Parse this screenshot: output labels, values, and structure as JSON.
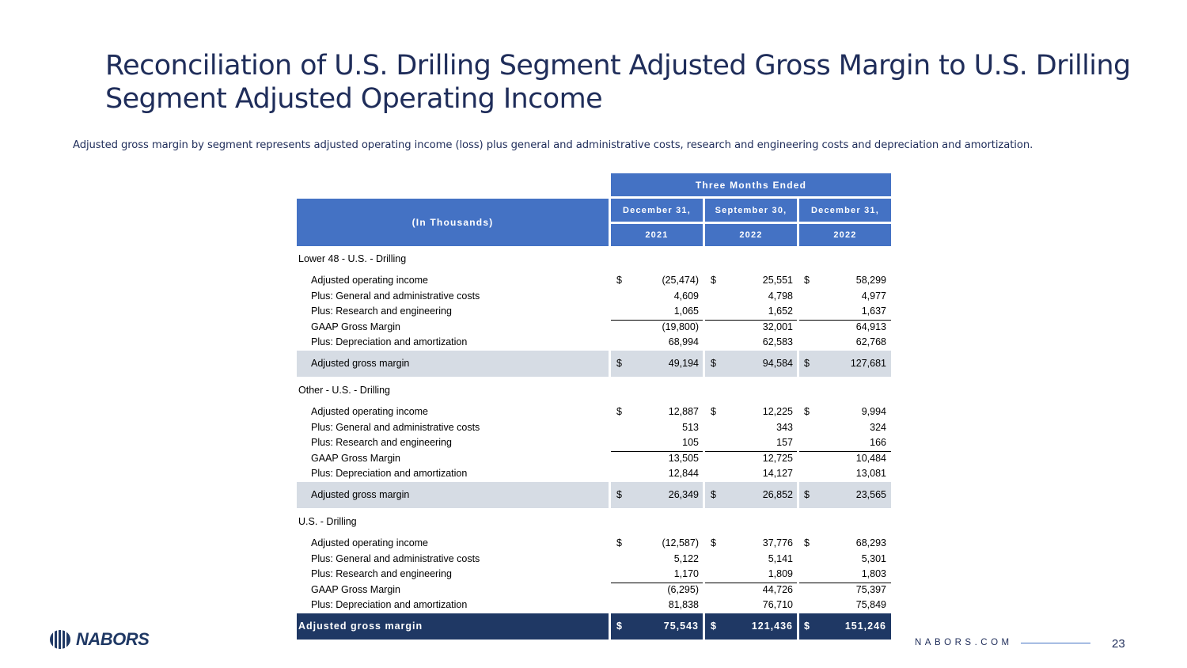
{
  "slide": {
    "title": "Reconciliation of U.S. Drilling Segment Adjusted Gross Margin to U.S. Drilling Segment Adjusted Operating Income",
    "subtitle": "Adjusted gross margin by segment represents adjusted operating income  (loss) plus general and administrative costs, research and engineering costs and depreciation and amortization.",
    "page_number": "23",
    "footer_url": "NABORS.COM",
    "logo_text": "NABORS"
  },
  "table": {
    "group_header": "Three Months Ended",
    "row_header": "(In Thousands)",
    "columns": [
      {
        "month": "December 31,",
        "year": "2021"
      },
      {
        "month": "September 30,",
        "year": "2022"
      },
      {
        "month": "December 31,",
        "year": "2022"
      }
    ],
    "sections": [
      {
        "name": "Lower 48 - U.S. - Drilling",
        "rows": [
          {
            "label": "Adjusted operating income",
            "values": [
              "(25,474)",
              "25,551",
              "58,299"
            ],
            "currency": true
          },
          {
            "label": "Plus: General and administrative costs",
            "values": [
              "4,609",
              "4,798",
              "4,977"
            ]
          },
          {
            "label": "Plus: Research and engineering",
            "values": [
              "1,065",
              "1,652",
              "1,637"
            ]
          },
          {
            "label": "GAAP Gross Margin",
            "values": [
              "(19,800)",
              "32,001",
              "64,913"
            ]
          },
          {
            "label": "Plus: Depreciation and amortization",
            "values": [
              "68,994",
              "62,583",
              "62,768"
            ]
          }
        ],
        "total": {
          "label": "Adjusted gross margin",
          "values": [
            "49,194",
            "94,584",
            "127,681"
          ]
        }
      },
      {
        "name": "Other - U.S. - Drilling",
        "rows": [
          {
            "label": "Adjusted operating income",
            "values": [
              "12,887",
              "12,225",
              "9,994"
            ],
            "currency": true
          },
          {
            "label": "Plus: General and administrative costs",
            "values": [
              "513",
              "343",
              "324"
            ]
          },
          {
            "label": "Plus: Research and engineering",
            "values": [
              "105",
              "157",
              "166"
            ]
          },
          {
            "label": "GAAP Gross Margin",
            "values": [
              "13,505",
              "12,725",
              "10,484"
            ]
          },
          {
            "label": "Plus: Depreciation and amortization",
            "values": [
              "12,844",
              "14,127",
              "13,081"
            ]
          }
        ],
        "total": {
          "label": "Adjusted gross margin",
          "values": [
            "26,349",
            "26,852",
            "23,565"
          ]
        }
      },
      {
        "name": "U.S. - Drilling",
        "rows": [
          {
            "label": "Adjusted operating income",
            "values": [
              "(12,587)",
              "37,776",
              "68,293"
            ],
            "currency": true
          },
          {
            "label": "Plus: General and administrative costs",
            "values": [
              "5,122",
              "5,141",
              "5,301"
            ]
          },
          {
            "label": "Plus: Research and engineering",
            "values": [
              "1,170",
              "1,809",
              "1,803"
            ]
          },
          {
            "label": "GAAP Gross Margin",
            "values": [
              "(6,295)",
              "44,726",
              "75,397"
            ]
          },
          {
            "label": "Plus: Depreciation and amortization",
            "values": [
              "81,838",
              "76,710",
              "75,849"
            ]
          }
        ],
        "total": {
          "label": "Adjusted gross margin",
          "values": [
            "75,543",
            "121,436",
            "151,246"
          ]
        }
      }
    ],
    "currency_symbol": "$"
  },
  "colors": {
    "header_blue": "#4472c4",
    "total_navy": "#1f3864",
    "shade_gray": "#d6dce4",
    "title_navy": "#1f2d5a"
  }
}
